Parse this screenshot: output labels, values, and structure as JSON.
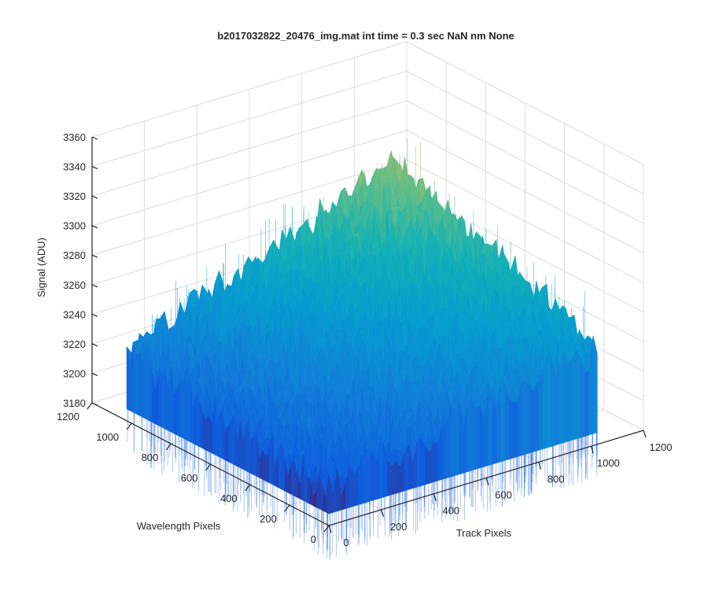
{
  "chart_data": {
    "type": "surface",
    "title": "b2017032822_20476_img.mat int time = 0.3 sec  NaN nm None",
    "xlabel": "Track Pixels",
    "ylabel": "Wavelength Pixels",
    "zlabel": "Signal (ADU)",
    "xlim": [
      0,
      1200
    ],
    "ylim": [
      0,
      1200
    ],
    "zlim": [
      3180,
      3360
    ],
    "x_ticks": [
      "0",
      "200",
      "400",
      "600",
      "800",
      "1000",
      "1200"
    ],
    "y_ticks": [
      "0",
      "200",
      "400",
      "600",
      "800",
      "1000",
      "1200"
    ],
    "z_ticks": [
      "3180",
      "3200",
      "3220",
      "3240",
      "3260",
      "3280",
      "3300",
      "3320",
      "3340",
      "3360"
    ],
    "grid": true,
    "colormap": "parula",
    "surface": {
      "x_range": [
        0,
        1024
      ],
      "y_range": [
        0,
        1024
      ],
      "corner_signal": {
        "x0_y0": 3205,
        "x1024_y0": 3245,
        "x0_y1024": 3225,
        "x1024_y1024": 3300
      },
      "noise_amplitude": 25
    }
  }
}
